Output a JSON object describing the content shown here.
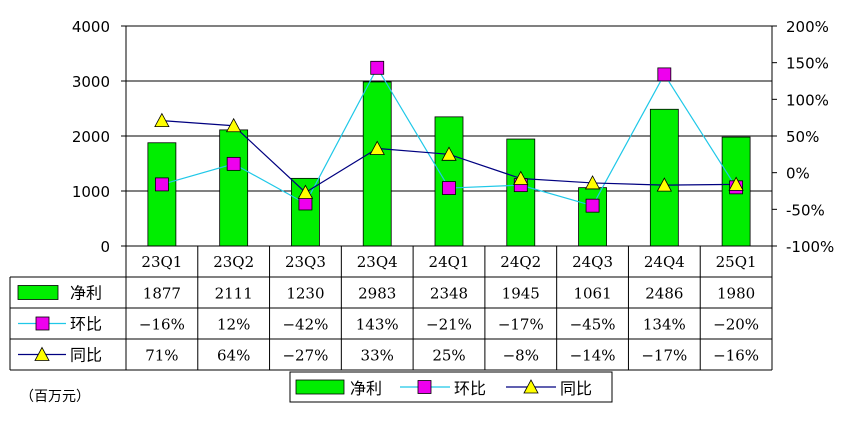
{
  "chart_data": {
    "type": "bar",
    "categories": [
      "23Q1",
      "23Q2",
      "23Q3",
      "23Q4",
      "24Q1",
      "24Q2",
      "24Q3",
      "24Q4",
      "25Q1"
    ],
    "left_axis": {
      "ylim": [
        0,
        4000
      ],
      "ticks": [
        0,
        1000,
        2000,
        3000,
        4000
      ]
    },
    "right_axis": {
      "ylim": [
        -100,
        200
      ],
      "ticks": [
        -100,
        -50,
        0,
        50,
        100,
        150,
        200
      ],
      "tick_labels": [
        "-100%",
        "-50%",
        "0%",
        "50%",
        "100%",
        "150%",
        "200%"
      ]
    },
    "series": [
      {
        "name": "净利",
        "type": "bar",
        "axis": "left",
        "color": "#00ee00",
        "values": [
          1877,
          2111,
          1230,
          2983,
          2348,
          1945,
          1061,
          2486,
          1980
        ],
        "labels": [
          "1877",
          "2111",
          "1230",
          "2983",
          "2348",
          "1945",
          "1061",
          "2486",
          "1980"
        ]
      },
      {
        "name": "环比",
        "type": "line",
        "axis": "right",
        "color": "#1fc8e8",
        "marker": "square",
        "marker_color": "#ee00ee",
        "values": [
          -16,
          12,
          -42,
          143,
          -21,
          -17,
          -45,
          134,
          -20
        ],
        "labels": [
          "-16%",
          "12%",
          "-42%",
          "143%",
          "-21%",
          "-17%",
          "-45%",
          "134%",
          "-20%"
        ]
      },
      {
        "name": "同比",
        "type": "line",
        "axis": "right",
        "color": "#000080",
        "marker": "triangle",
        "marker_color": "#ffff00",
        "values": [
          71,
          64,
          -27,
          33,
          25,
          -8,
          -14,
          -17,
          -16
        ],
        "labels": [
          "71%",
          "64%",
          "-27%",
          "33%",
          "25%",
          "-8%",
          "-14%",
          "-17%",
          "-16%"
        ]
      }
    ],
    "legend_position": "bottom",
    "grid": true
  },
  "unit_note": "（百万元）"
}
